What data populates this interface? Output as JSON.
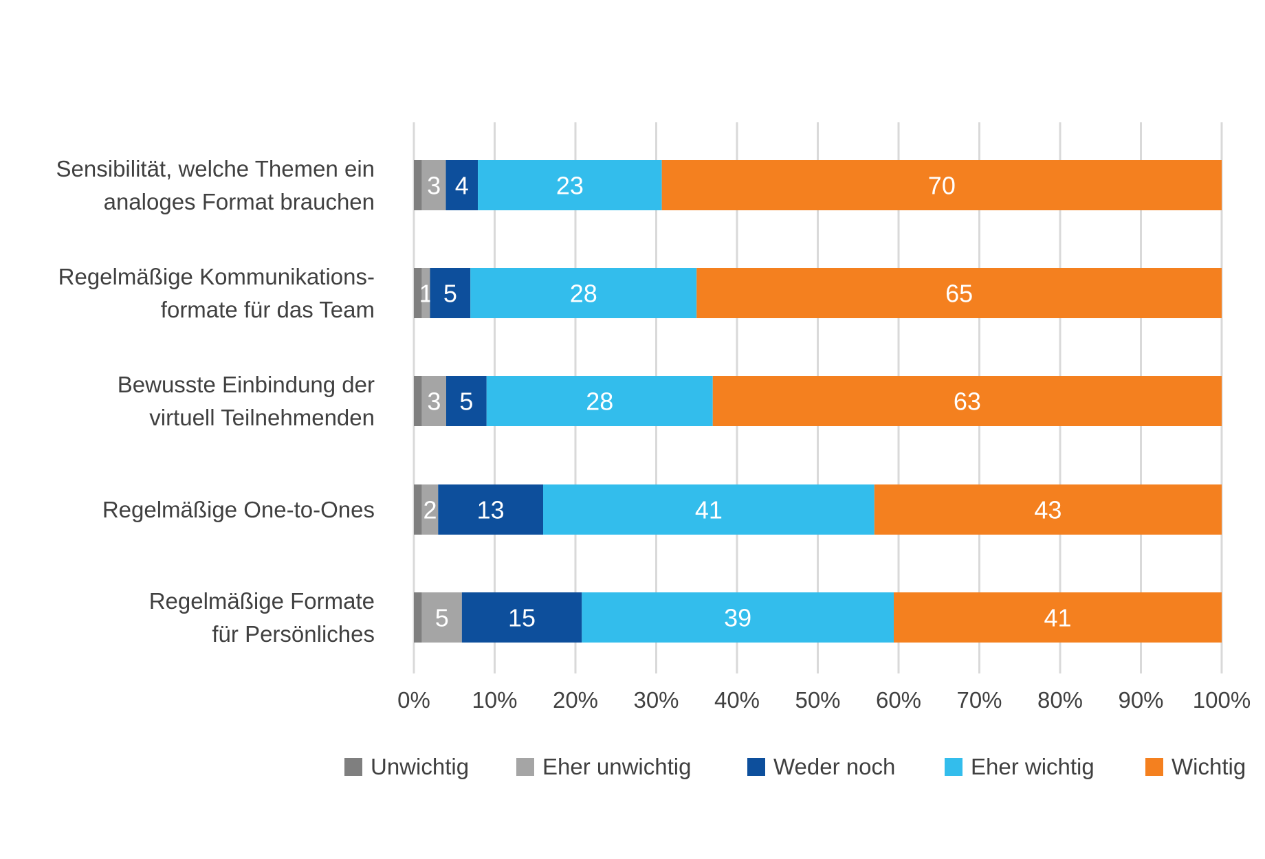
{
  "chart_data": {
    "type": "bar",
    "orientation": "horizontal",
    "stacked": true,
    "percent_stacked": true,
    "categories": [
      "Sensibilität, welche Themen ein\nanaloges Format brauchen",
      "Regelmäßige Kommunikations-\nformate für das Team",
      "Bewusste Einbindung der\nvirtuell Teilnehmenden",
      "Regelmäßige One-to-Ones",
      "Regelmäßige Formate\nfür Persönliches"
    ],
    "series": [
      {
        "name": "Unwichtig",
        "color": "#7f7f7f",
        "values": [
          1,
          1,
          1,
          1,
          1
        ],
        "labels": [
          "",
          "",
          "",
          "",
          ""
        ]
      },
      {
        "name": "Eher unwichtig",
        "color": "#a5a5a5",
        "values": [
          3,
          1,
          3,
          2,
          5
        ],
        "labels": [
          "3",
          "1",
          "3",
          "2",
          "5"
        ]
      },
      {
        "name": "Weder noch",
        "color": "#0d4f9c",
        "values": [
          4,
          5,
          5,
          13,
          15
        ],
        "labels": [
          "4",
          "5",
          "5",
          "13",
          "15"
        ]
      },
      {
        "name": "Eher wichtig",
        "color": "#33bdec",
        "values": [
          23,
          28,
          28,
          41,
          39
        ],
        "labels": [
          "23",
          "28",
          "28",
          "41",
          "39"
        ]
      },
      {
        "name": "Wichtig",
        "color": "#f4801f",
        "values": [
          70,
          65,
          63,
          43,
          41
        ],
        "labels": [
          "70",
          "65",
          "63",
          "43",
          "41"
        ]
      }
    ],
    "x_ticks": [
      "0%",
      "10%",
      "20%",
      "30%",
      "40%",
      "50%",
      "60%",
      "70%",
      "80%",
      "90%",
      "100%"
    ],
    "xlim": [
      0,
      100
    ],
    "grid": "vertical",
    "legend_position": "bottom"
  }
}
